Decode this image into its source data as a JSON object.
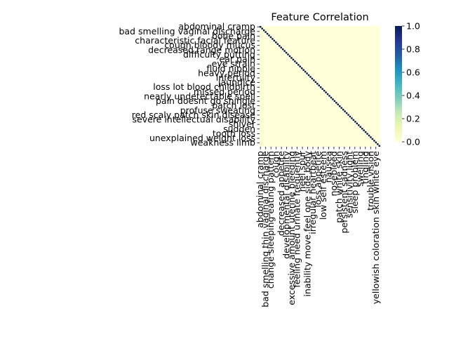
{
  "chart_data": {
    "type": "heatmap",
    "title": "Feature Correlation",
    "xlabel": "",
    "ylabel": "",
    "y_tick_labels": [
      "abdominal cramp",
      "bad smelling vaginal discharge",
      "bone pain",
      "characteristic facial feature",
      "cough bloody mucus",
      "decreased range motion",
      "difficulty putting",
      "ear pain",
      "eye strain",
      "fluid nipple",
      "heavy period",
      "infertility",
      "jaundice",
      "loss lot blood childbirth",
      "missed period",
      "nearly undetectable spell",
      "pain doesnt go shingle",
      "patch lost",
      "profuse sweating",
      "red scaly patch skin disease",
      "severe intellectual disability",
      "shiver",
      "sudden",
      "tooth loss",
      "unexplained weight loss",
      "weakness limb"
    ],
    "x_tick_labels": [
      "abdominal cramp",
      "bad smelling thin vaginal discharge",
      "change sleeping eating pattern",
      "cough",
      "decreased appetite",
      "developmental disability",
      "excessive amount uterine bleeding",
      "feeling need urinate frequently",
      "heel spur",
      "inability move feel one side body",
      "irregular heartbeat",
      "loss appetite",
      "low self esteem",
      "nausea",
      "nosebleed",
      "patch white skin",
      "persistent sadness",
      "sensitivity light",
      "sleep problem",
      "swelling",
      "tingling",
      "trouble vision",
      "yellowish coloration skin white eye"
    ],
    "n_features": 70,
    "value_range": [
      0.0,
      1.0
    ],
    "diagonal_value": 1.0,
    "off_diagonal_value": 0.0,
    "colorbar_ticks": [
      "0.0",
      "0.2",
      "0.4",
      "0.6",
      "0.8",
      "1.0"
    ],
    "colormap": [
      "#ffffd9",
      "#edf8b1",
      "#c7e9b4",
      "#7fcdbb",
      "#41b6c4",
      "#1d91c0",
      "#225ea8",
      "#253494",
      "#081d58"
    ],
    "grid": false,
    "legend": "right"
  }
}
